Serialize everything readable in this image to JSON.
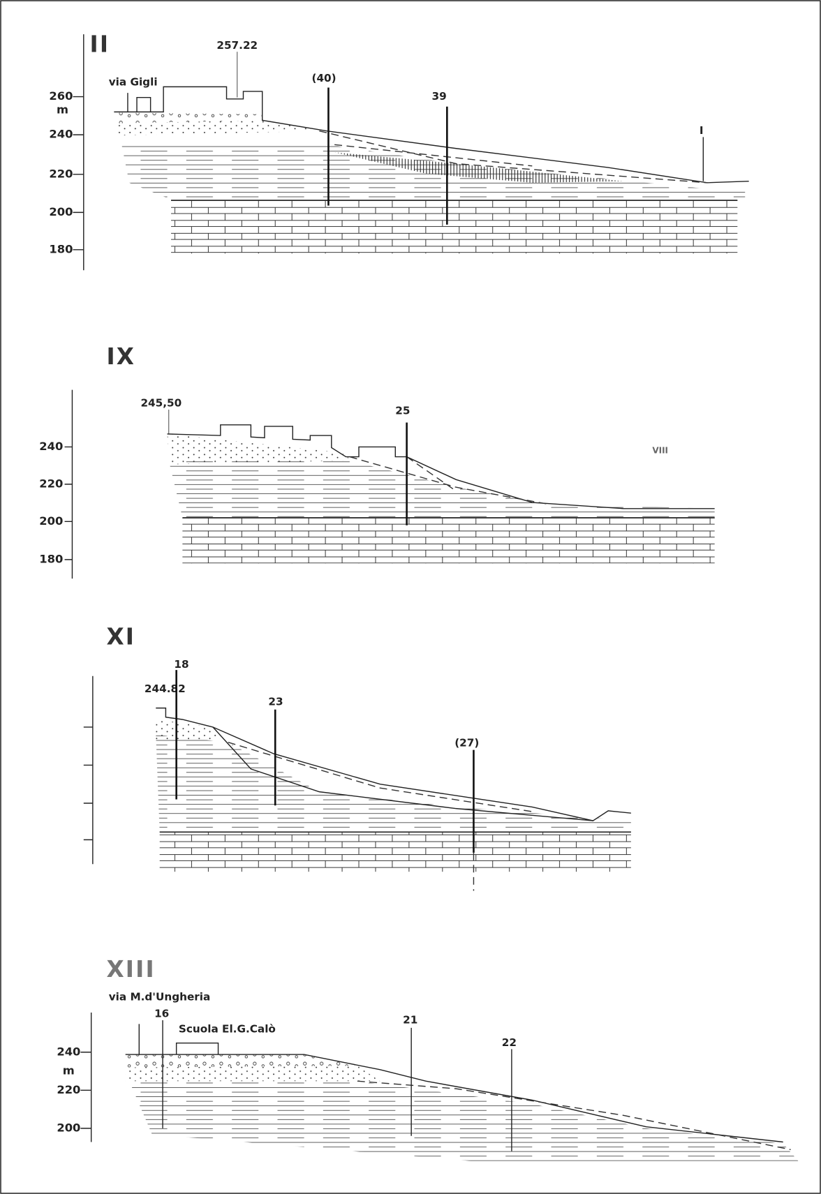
{
  "sections": [
    {
      "title": "II",
      "axis": {
        "ticks": [
          "260",
          "240",
          "220",
          "200",
          "180"
        ],
        "unit": "m"
      },
      "annotations": [
        "via Gigli",
        "257.22",
        "(40)",
        "39",
        "I"
      ]
    },
    {
      "title": "IX",
      "axis": {
        "ticks": [
          "240",
          "220",
          "200",
          "180"
        ]
      },
      "annotations": [
        "245,50",
        "25",
        "VIII"
      ]
    },
    {
      "title": "XI",
      "annotations": [
        "18",
        "244.82",
        "23",
        "(27)"
      ]
    },
    {
      "title": "XIII",
      "axis": {
        "ticks": [
          "240",
          "220",
          "200"
        ],
        "unit": "m"
      },
      "annotations": [
        "via M.d'Ungheria",
        "16",
        "Scuola El.G.Calò",
        "21",
        "22"
      ]
    }
  ]
}
